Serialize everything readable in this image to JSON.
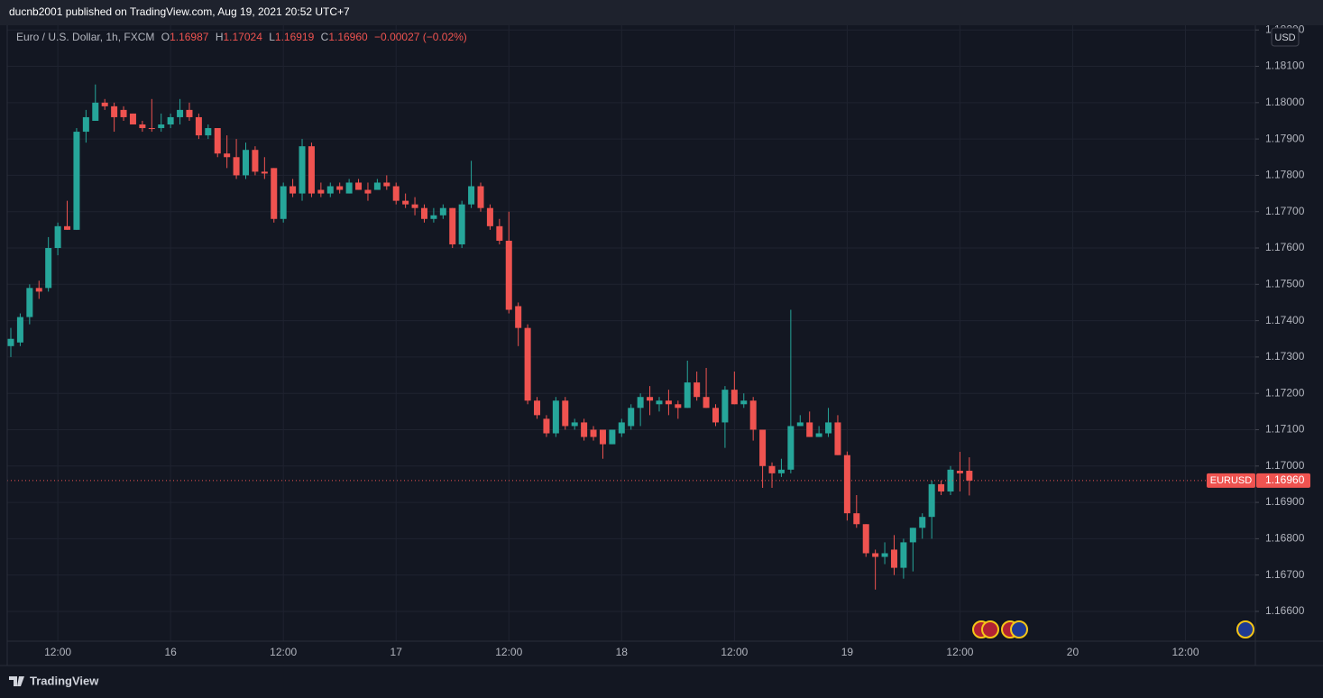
{
  "header": {
    "byline": "ducnb2001 published on TradingView.com, Aug 19, 2021 20:52 UTC+7"
  },
  "chart_data": {
    "type": "candlestick",
    "title": "Euro / U.S. Dollar, 1h, FXCM",
    "legend": {
      "o": "O",
      "open": "1.16987",
      "h": "H",
      "high": "1.17024",
      "l": "L",
      "low": "1.16919",
      "c": "C",
      "close": "1.16960",
      "change": "−0.00027 (−0.02%)"
    },
    "currency": "USD",
    "categories": [
      null,
      null,
      null,
      null,
      null,
      "12:00",
      null,
      null,
      null,
      null,
      null,
      null,
      null,
      null,
      null,
      null,
      null,
      "16",
      null,
      null,
      null,
      null,
      null,
      null,
      null,
      null,
      null,
      null,
      null,
      "12:00",
      null,
      null,
      null,
      null,
      null,
      null,
      null,
      null,
      null,
      null,
      null,
      "17",
      null,
      null,
      null,
      null,
      null,
      null,
      null,
      null,
      null,
      null,
      null,
      "12:00",
      null,
      null,
      null,
      null,
      null,
      null,
      null,
      null,
      null,
      null,
      null,
      "18",
      null,
      null,
      null,
      null,
      null,
      null,
      null,
      null,
      null,
      null,
      null,
      "12:00",
      null,
      null,
      null,
      null,
      null,
      null,
      null,
      null,
      null,
      null,
      null,
      "19",
      null,
      null,
      null,
      null,
      null,
      null,
      null,
      null,
      null,
      null,
      null,
      "12:00",
      null,
      null,
      null,
      null,
      null,
      null,
      null,
      null,
      null,
      null,
      null,
      "20",
      null,
      null,
      null,
      null,
      null,
      null,
      null,
      null,
      null,
      null,
      null,
      "12:00"
    ],
    "open": [
      1.1733,
      1.1734,
      1.1741,
      1.1749,
      1.1749,
      1.176,
      1.1766,
      1.1765,
      1.1792,
      1.1795,
      1.18,
      1.1799,
      1.1798,
      1.1797,
      1.1794,
      1.1793,
      1.1793,
      1.1794,
      1.1796,
      1.1798,
      1.1796,
      1.1791,
      1.1793,
      1.1786,
      1.1785,
      1.178,
      1.1787,
      1.1781,
      1.1782,
      1.1768,
      1.1777,
      1.1775,
      1.1788,
      1.1776,
      1.1775,
      1.1777,
      1.1775,
      1.1778,
      1.1776,
      1.1776,
      1.1778,
      1.1777,
      1.1773,
      1.1772,
      1.1771,
      1.1768,
      1.1769,
      1.1771,
      1.1761,
      1.1772,
      1.1777,
      1.1771,
      1.1766,
      1.1762,
      1.1744,
      1.1738,
      1.1718,
      1.1713,
      1.1709,
      1.1718,
      1.1711,
      1.1712,
      1.171,
      1.171,
      1.1706,
      1.1709,
      1.1711,
      1.1716,
      1.1719,
      1.1717,
      1.1718,
      1.1717,
      1.1716,
      1.1723,
      1.1719,
      1.1716,
      1.1712,
      1.1721,
      1.1717,
      1.1718,
      1.171,
      1.17,
      1.1698,
      1.1699,
      1.1711,
      1.1712,
      1.1708,
      1.1709,
      1.1712,
      1.1703,
      1.1687,
      1.1684,
      1.1676,
      1.1675,
      1.1677,
      1.1672,
      1.1679,
      1.1683,
      1.1686,
      1.1695,
      1.1693,
      1.16987,
      1.16987,
      null,
      null,
      null,
      null,
      null,
      null,
      null,
      null,
      null,
      null,
      null,
      null,
      null,
      null,
      null,
      null,
      null,
      null,
      null,
      null,
      null,
      null,
      null
    ],
    "high": [
      1.1738,
      1.1742,
      1.175,
      1.1751,
      1.1763,
      1.1767,
      1.1773,
      1.1793,
      1.1798,
      1.1805,
      1.1801,
      1.18,
      1.1799,
      1.1797,
      1.1795,
      1.1801,
      1.1797,
      1.1797,
      1.1801,
      1.18,
      1.1797,
      1.1794,
      1.1793,
      1.1791,
      1.179,
      1.1789,
      1.1788,
      1.1785,
      1.1782,
      1.1778,
      1.1779,
      1.179,
      1.1789,
      1.1778,
      1.1778,
      1.1778,
      1.1779,
      1.1779,
      1.1778,
      1.1779,
      1.178,
      1.1778,
      1.1775,
      1.1774,
      1.1772,
      1.1771,
      1.1772,
      1.1771,
      1.1773,
      1.1784,
      1.1778,
      1.1772,
      1.1768,
      1.177,
      1.1745,
      1.1739,
      1.1719,
      1.1714,
      1.1719,
      1.1719,
      1.1713,
      1.1713,
      1.1711,
      1.171,
      1.171,
      1.1713,
      1.1717,
      1.172,
      1.1722,
      1.1719,
      1.1721,
      1.1718,
      1.1729,
      1.1726,
      1.1727,
      1.1717,
      1.1722,
      1.1726,
      1.172,
      1.1719,
      1.171,
      1.1701,
      1.1702,
      1.1743,
      1.1714,
      1.1715,
      1.1711,
      1.1716,
      1.1714,
      1.1704,
      1.1692,
      1.1684,
      1.1677,
      1.1679,
      1.1681,
      1.168,
      1.1683,
      1.1687,
      1.1696,
      1.1696,
      1.17,
      1.17039,
      1.17024,
      null,
      null,
      null,
      null,
      null,
      null,
      null,
      null,
      null,
      null,
      null,
      null,
      null,
      null,
      null,
      null,
      null,
      null,
      null,
      null,
      null,
      null,
      null
    ],
    "low": [
      1.173,
      1.1733,
      1.1739,
      1.1746,
      1.1748,
      1.1758,
      1.1765,
      1.1765,
      1.1789,
      1.1795,
      1.1798,
      1.1792,
      1.1795,
      1.1794,
      1.1792,
      1.1792,
      1.1792,
      1.1793,
      1.1794,
      1.1795,
      1.179,
      1.179,
      1.1785,
      1.1782,
      1.1779,
      1.1779,
      1.178,
      1.1779,
      1.1767,
      1.1767,
      1.1774,
      1.1773,
      1.1774,
      1.1774,
      1.1774,
      1.1775,
      1.1775,
      1.1776,
      1.1773,
      1.1776,
      1.1776,
      1.1772,
      1.1771,
      1.1769,
      1.1767,
      1.1767,
      1.1768,
      1.176,
      1.176,
      1.1771,
      1.177,
      1.1765,
      1.1761,
      1.1742,
      1.1733,
      1.1717,
      1.1713,
      1.1708,
      1.1708,
      1.171,
      1.171,
      1.1707,
      1.1707,
      1.1702,
      1.1706,
      1.1708,
      1.171,
      1.1711,
      1.1714,
      1.1715,
      1.1714,
      1.1713,
      1.1716,
      1.1718,
      1.1716,
      1.1711,
      1.1705,
      1.1717,
      1.1716,
      1.1707,
      1.1694,
      1.1694,
      1.1697,
      1.1698,
      1.1711,
      1.1708,
      1.1708,
      1.1708,
      1.1703,
      1.1685,
      1.1683,
      1.1675,
      1.1666,
      1.1673,
      1.167,
      1.1669,
      1.1671,
      1.168,
      1.168,
      1.1692,
      1.1692,
      1.1693,
      1.16919,
      null,
      null,
      null,
      null,
      null,
      null,
      null,
      null,
      null,
      null,
      null,
      null,
      null,
      null,
      null,
      null,
      null,
      null,
      null,
      null,
      null,
      null,
      null
    ],
    "close": [
      1.1735,
      1.1741,
      1.1749,
      1.1748,
      1.176,
      1.1766,
      1.1765,
      1.1792,
      1.1796,
      1.18,
      1.1799,
      1.1796,
      1.1796,
      1.1794,
      1.1793,
      1.17928,
      1.1794,
      1.1796,
      1.1798,
      1.1796,
      1.1791,
      1.1793,
      1.1786,
      1.1785,
      1.178,
      1.1787,
      1.1781,
      1.17805,
      1.1768,
      1.1777,
      1.1775,
      1.1788,
      1.1775,
      1.1775,
      1.1777,
      1.1776,
      1.1778,
      1.1776,
      1.1775,
      1.1778,
      1.1777,
      1.1773,
      1.1772,
      1.1771,
      1.1768,
      1.1769,
      1.1771,
      1.1761,
      1.1772,
      1.1777,
      1.1771,
      1.1766,
      1.1762,
      1.1743,
      1.1738,
      1.1718,
      1.1714,
      1.1709,
      1.1718,
      1.1711,
      1.1712,
      1.1708,
      1.1708,
      1.1706,
      1.171,
      1.1712,
      1.1716,
      1.1719,
      1.1718,
      1.1718,
      1.1717,
      1.1716,
      1.1723,
      1.1719,
      1.1716,
      1.1712,
      1.1721,
      1.1717,
      1.1718,
      1.171,
      1.17,
      1.1698,
      1.1699,
      1.1711,
      1.1712,
      1.1708,
      1.1709,
      1.1712,
      1.1703,
      1.1687,
      1.1684,
      1.1676,
      1.1675,
      1.1676,
      1.1672,
      1.1679,
      1.1683,
      1.1686,
      1.1695,
      1.1693,
      1.1699,
      1.1698,
      1.1696,
      null,
      null,
      null,
      null,
      null,
      null,
      null,
      null,
      null,
      null,
      null,
      null,
      null,
      null,
      null,
      null,
      null,
      null,
      null,
      null,
      null,
      null,
      null
    ],
    "up_color": "#26a69a",
    "down_color": "#ef5350",
    "ylim": [
      1.16518,
      1.18213
    ],
    "yticks": [
      {
        "value": 1.166,
        "label": "1.16600"
      },
      {
        "value": 1.167,
        "label": "1.16700"
      },
      {
        "value": 1.168,
        "label": "1.16800"
      },
      {
        "value": 1.169,
        "label": "1.16900"
      },
      {
        "value": 1.17,
        "label": "1.17000"
      },
      {
        "value": 1.171,
        "label": "1.17100"
      },
      {
        "value": 1.172,
        "label": "1.17200"
      },
      {
        "value": 1.173,
        "label": "1.17300"
      },
      {
        "value": 1.174,
        "label": "1.17400"
      },
      {
        "value": 1.175,
        "label": "1.17500"
      },
      {
        "value": 1.176,
        "label": "1.17600"
      },
      {
        "value": 1.177,
        "label": "1.17700"
      },
      {
        "value": 1.178,
        "label": "1.17800"
      },
      {
        "value": 1.179,
        "label": "1.17900"
      },
      {
        "value": 1.18,
        "label": "1.18000"
      },
      {
        "value": 1.181,
        "label": "1.18100"
      },
      {
        "value": 1.182,
        "label": "1.18200"
      }
    ],
    "grid": true,
    "last_price": {
      "symbol": "EURUSD",
      "value": 1.1696,
      "label": "1.16960"
    }
  },
  "footer": {
    "brand": "TradingView"
  }
}
